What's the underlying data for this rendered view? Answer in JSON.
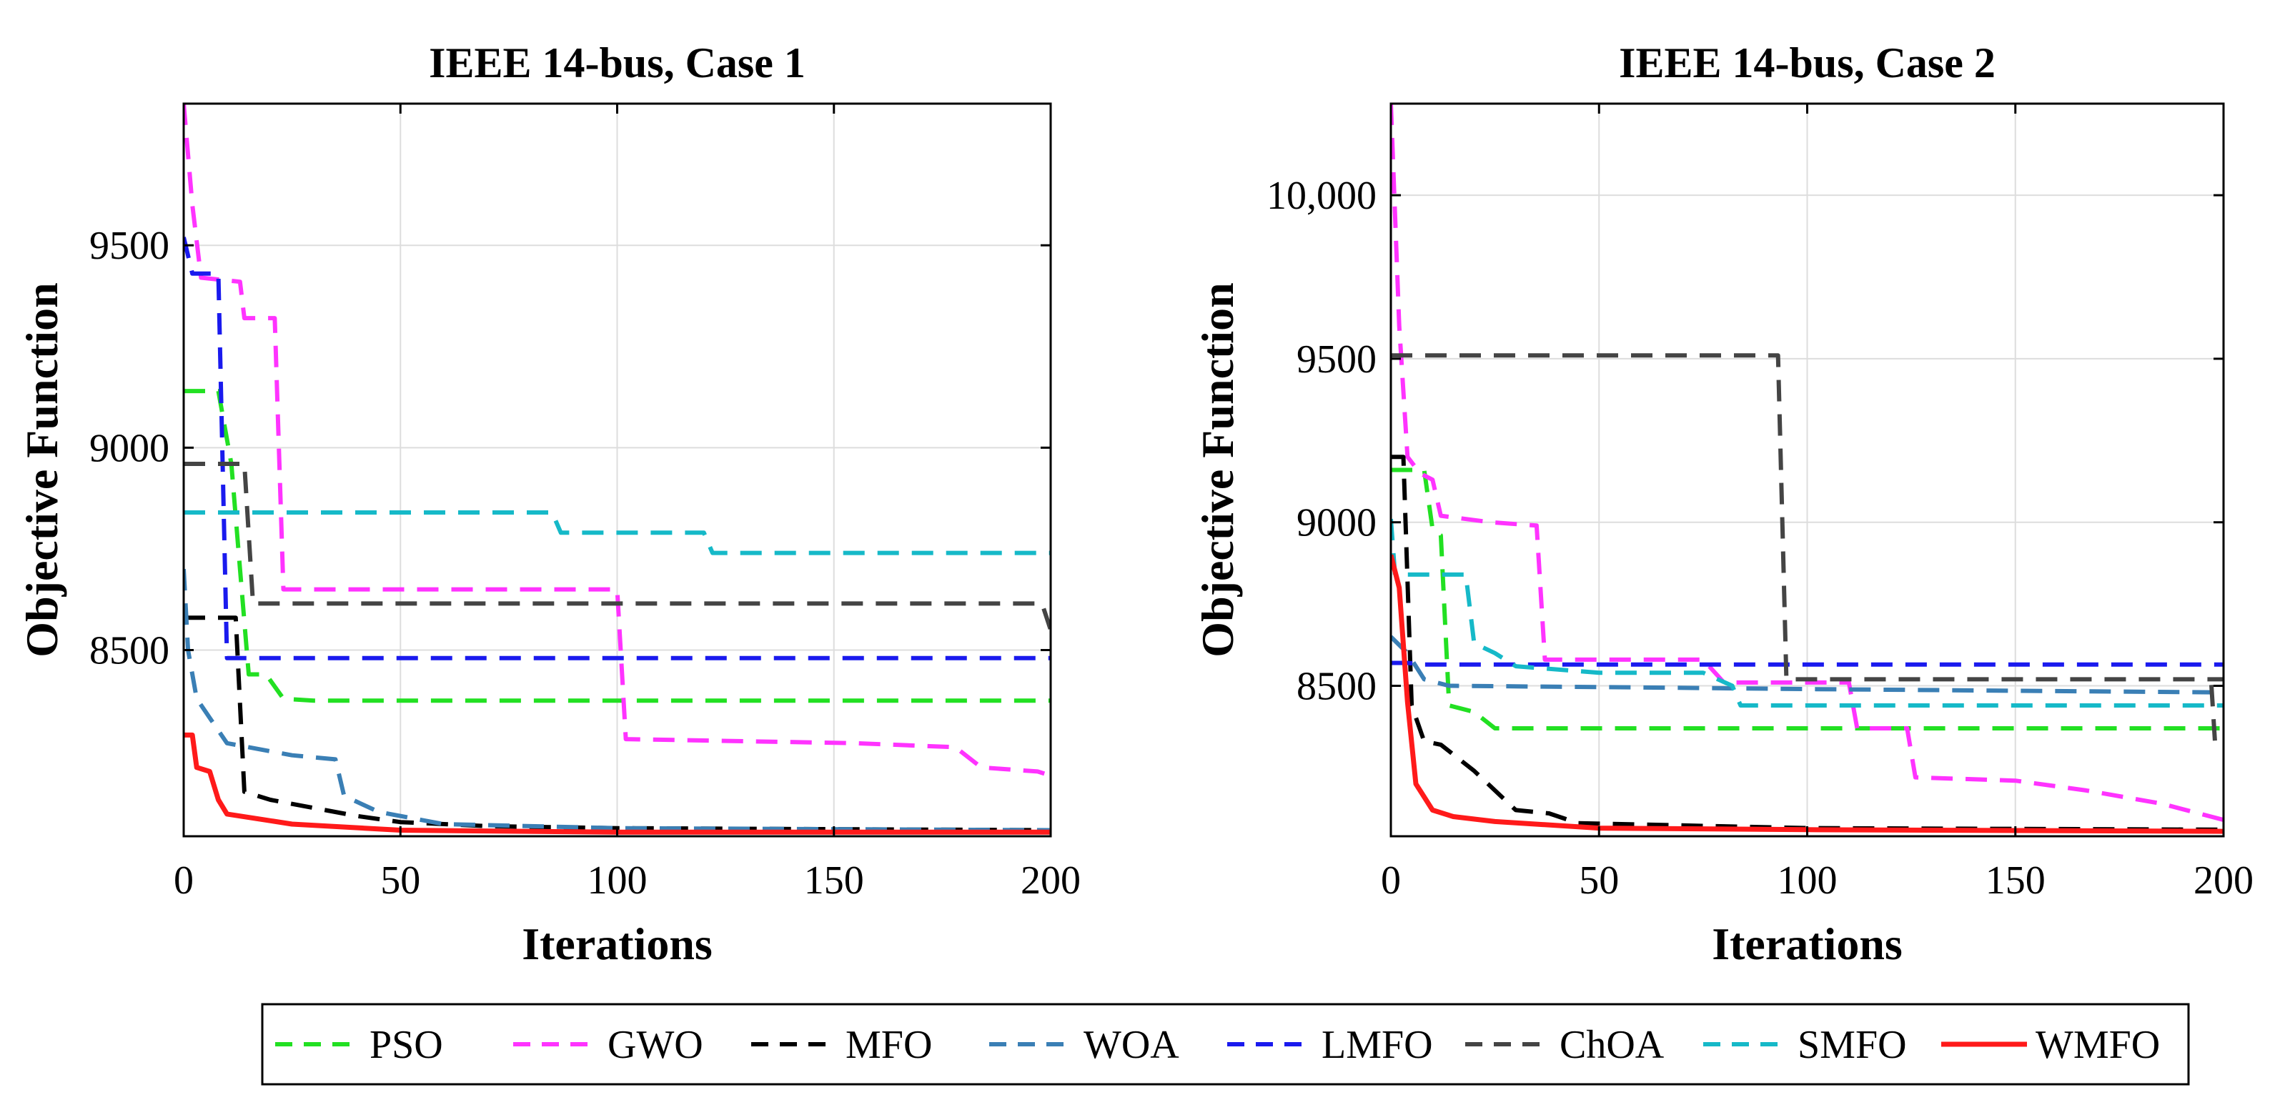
{
  "series_styles": {
    "PSO": {
      "color": "#22e022",
      "dash": "dashed"
    },
    "GWO": {
      "color": "#ff33ff",
      "dash": "dashed"
    },
    "MFO": {
      "color": "#000000",
      "dash": "dashed"
    },
    "WOA": {
      "color": "#3a7fb5",
      "dash": "dashed"
    },
    "LMFO": {
      "color": "#1a1aee",
      "dash": "dashed"
    },
    "ChOA": {
      "color": "#444444",
      "dash": "dashed"
    },
    "SMFO": {
      "color": "#16b9c8",
      "dash": "dashed"
    },
    "WMFO": {
      "color": "#ff1a1a",
      "dash": "solid"
    }
  },
  "legend": {
    "entries": [
      "PSO",
      "GWO",
      "MFO",
      "WOA",
      "LMFO",
      "ChOA",
      "SMFO",
      "WMFO"
    ],
    "placement": "bottom-center"
  },
  "chart_data": [
    {
      "type": "line",
      "title": "IEEE 14-bus, Case 1",
      "xlabel": "Iterations",
      "ylabel": "Objective Function",
      "xlim": [
        0,
        200
      ],
      "ylim": [
        8040,
        9850
      ],
      "xticks": [
        0,
        50,
        100,
        150,
        200
      ],
      "xtick_labels": [
        "0",
        "50",
        "100",
        "150",
        "200"
      ],
      "yticks": [
        8500,
        9000,
        9500
      ],
      "ytick_labels": [
        "8500",
        "9000",
        "9500"
      ],
      "grid": true,
      "series": [
        {
          "name": "PSO",
          "points": [
            [
              0,
              9140
            ],
            [
              8,
              9140
            ],
            [
              11,
              8960
            ],
            [
              13,
              8700
            ],
            [
              15,
              8440
            ],
            [
              19,
              8440
            ],
            [
              23,
              8380
            ],
            [
              30,
              8375
            ],
            [
              200,
              8375
            ]
          ]
        },
        {
          "name": "GWO",
          "points": [
            [
              0,
              9850
            ],
            [
              2,
              9600
            ],
            [
              4,
              9420
            ],
            [
              13,
              9410
            ],
            [
              14,
              9320
            ],
            [
              21,
              9320
            ],
            [
              23,
              8650
            ],
            [
              100,
              8650
            ],
            [
              102,
              8280
            ],
            [
              155,
              8270
            ],
            [
              178,
              8260
            ],
            [
              184,
              8210
            ],
            [
              197,
              8200
            ],
            [
              200,
              8190
            ]
          ]
        },
        {
          "name": "MFO",
          "points": [
            [
              0,
              8580
            ],
            [
              12,
              8580
            ],
            [
              14,
              8150
            ],
            [
              20,
              8130
            ],
            [
              30,
              8110
            ],
            [
              40,
              8090
            ],
            [
              50,
              8075
            ],
            [
              70,
              8065
            ],
            [
              100,
              8060
            ],
            [
              200,
              8055
            ]
          ]
        },
        {
          "name": "WOA",
          "points": [
            [
              0,
              8700
            ],
            [
              1,
              8500
            ],
            [
              3,
              8380
            ],
            [
              10,
              8270
            ],
            [
              25,
              8240
            ],
            [
              35,
              8230
            ],
            [
              37,
              8140
            ],
            [
              45,
              8100
            ],
            [
              60,
              8070
            ],
            [
              100,
              8060
            ],
            [
              200,
              8055
            ]
          ]
        },
        {
          "name": "LMFO",
          "points": [
            [
              0,
              9520
            ],
            [
              2,
              9430
            ],
            [
              8,
              9430
            ],
            [
              10,
              8480
            ],
            [
              200,
              8480
            ]
          ]
        },
        {
          "name": "ChOA",
          "points": [
            [
              0,
              8960
            ],
            [
              14,
              8960
            ],
            [
              16,
              8615
            ],
            [
              198,
              8615
            ],
            [
              200,
              8550
            ]
          ]
        },
        {
          "name": "SMFO",
          "points": [
            [
              0,
              8840
            ],
            [
              85,
              8840
            ],
            [
              87,
              8790
            ],
            [
              120,
              8790
            ],
            [
              122,
              8740
            ],
            [
              200,
              8740
            ]
          ]
        },
        {
          "name": "WMFO",
          "points": [
            [
              0,
              8290
            ],
            [
              2,
              8290
            ],
            [
              3,
              8210
            ],
            [
              6,
              8200
            ],
            [
              8,
              8130
            ],
            [
              10,
              8095
            ],
            [
              25,
              8070
            ],
            [
              50,
              8055
            ],
            [
              100,
              8050
            ],
            [
              200,
              8050
            ]
          ]
        }
      ]
    },
    {
      "type": "line",
      "title": "IEEE 14-bus, Case 2",
      "xlabel": "Iterations",
      "ylabel": "Objective Function",
      "xlim": [
        0,
        200
      ],
      "ylim": [
        8040,
        10280
      ],
      "xticks": [
        0,
        50,
        100,
        150,
        200
      ],
      "xtick_labels": [
        "0",
        "50",
        "100",
        "150",
        "200"
      ],
      "yticks": [
        8500,
        9000,
        9500,
        10000
      ],
      "ytick_labels": [
        "8500",
        "9000",
        "9500",
        "10,000"
      ],
      "grid": true,
      "series": [
        {
          "name": "PSO",
          "points": [
            [
              0,
              9160
            ],
            [
              8,
              9160
            ],
            [
              10,
              8980
            ],
            [
              12,
              8960
            ],
            [
              14,
              8440
            ],
            [
              20,
              8420
            ],
            [
              25,
              8370
            ],
            [
              200,
              8370
            ]
          ]
        },
        {
          "name": "GWO",
          "points": [
            [
              0,
              10280
            ],
            [
              2,
              9600
            ],
            [
              4,
              9200
            ],
            [
              7,
              9150
            ],
            [
              10,
              9130
            ],
            [
              12,
              9020
            ],
            [
              24,
              9000
            ],
            [
              35,
              8990
            ],
            [
              37,
              8580
            ],
            [
              75,
              8580
            ],
            [
              80,
              8510
            ],
            [
              110,
              8510
            ],
            [
              112,
              8370
            ],
            [
              124,
              8370
            ],
            [
              126,
              8220
            ],
            [
              150,
              8210
            ],
            [
              167,
              8180
            ],
            [
              185,
              8140
            ],
            [
              200,
              8090
            ]
          ]
        },
        {
          "name": "MFO",
          "points": [
            [
              0,
              9200
            ],
            [
              3,
              9200
            ],
            [
              5,
              8440
            ],
            [
              8,
              8330
            ],
            [
              12,
              8320
            ],
            [
              20,
              8240
            ],
            [
              30,
              8120
            ],
            [
              38,
              8110
            ],
            [
              45,
              8080
            ],
            [
              100,
              8065
            ],
            [
              200,
              8060
            ]
          ]
        },
        {
          "name": "WOA",
          "points": [
            [
              0,
              8650
            ],
            [
              4,
              8600
            ],
            [
              8,
              8520
            ],
            [
              14,
              8500
            ],
            [
              60,
              8495
            ],
            [
              100,
              8490
            ],
            [
              200,
              8480
            ]
          ]
        },
        {
          "name": "LMFO",
          "points": [
            [
              0,
              8570
            ],
            [
              4,
              8570
            ],
            [
              8,
              8565
            ],
            [
              200,
              8565
            ]
          ]
        },
        {
          "name": "ChOA",
          "points": [
            [
              0,
              9510
            ],
            [
              93,
              9510
            ],
            [
              95,
              8520
            ],
            [
              200,
              8520
            ],
            [
              197,
              8520
            ],
            [
              198,
              8320
            ],
            [
              200,
              8320
            ]
          ]
        },
        {
          "name": "SMFO",
          "points": [
            [
              0,
              9010
            ],
            [
              1,
              8840
            ],
            [
              18,
              8840
            ],
            [
              20,
              8630
            ],
            [
              25,
              8600
            ],
            [
              30,
              8560
            ],
            [
              50,
              8540
            ],
            [
              75,
              8540
            ],
            [
              82,
              8500
            ],
            [
              84,
              8440
            ],
            [
              200,
              8440
            ]
          ]
        },
        {
          "name": "WMFO",
          "points": [
            [
              0,
              8900
            ],
            [
              2,
              8800
            ],
            [
              4,
              8450
            ],
            [
              6,
              8200
            ],
            [
              10,
              8120
            ],
            [
              15,
              8100
            ],
            [
              25,
              8085
            ],
            [
              50,
              8065
            ],
            [
              100,
              8060
            ],
            [
              200,
              8055
            ]
          ]
        }
      ]
    }
  ]
}
